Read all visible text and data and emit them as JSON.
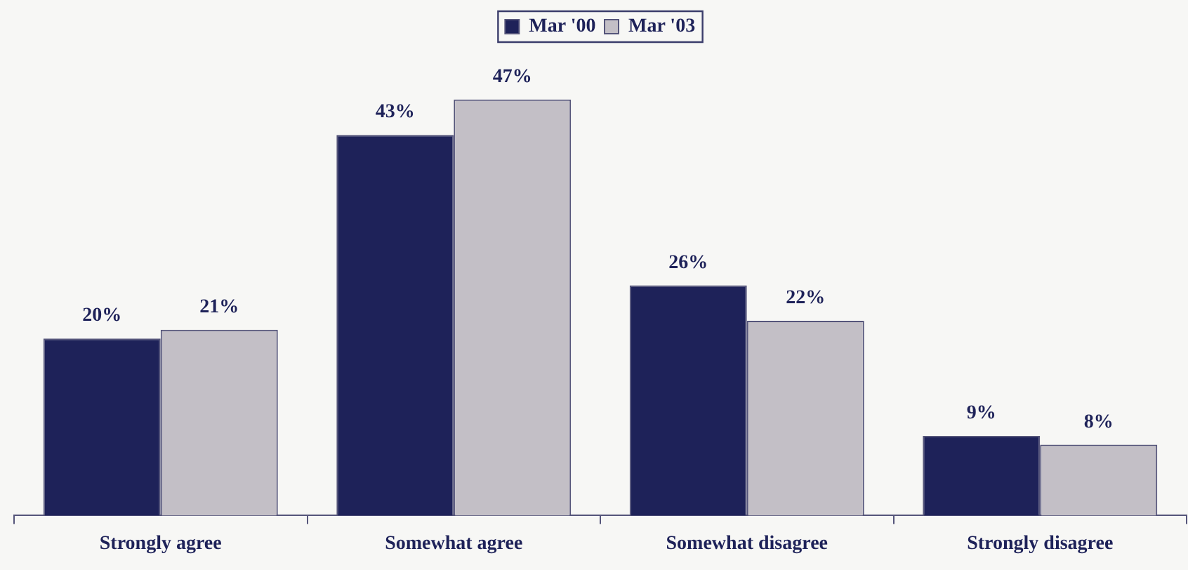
{
  "chart_data": {
    "type": "bar",
    "categories": [
      "Strongly agree",
      "Somewhat agree",
      "Somewhat disagree",
      "Strongly disagree"
    ],
    "series": [
      {
        "name": "Mar '00",
        "color": "#1e2259",
        "values": [
          20,
          43,
          26,
          9
        ],
        "value_labels": [
          "20%",
          "43%",
          "26%",
          "9%"
        ]
      },
      {
        "name": "Mar '03",
        "color": "#c3bfc6",
        "values": [
          21,
          47,
          22,
          8
        ],
        "value_labels": [
          "21%",
          "47%",
          "22%",
          "8%"
        ]
      }
    ],
    "legend": "top",
    "grid": false
  }
}
